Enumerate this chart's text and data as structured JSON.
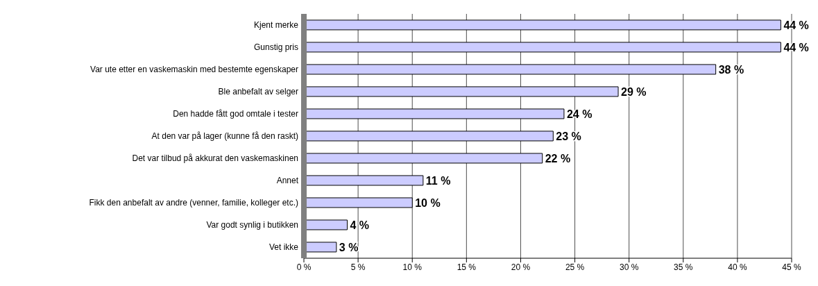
{
  "chart_data": {
    "type": "bar",
    "orientation": "horizontal",
    "categories": [
      "Kjent merke",
      "Gunstig pris",
      "Var ute etter en vaskemaskin med bestemte egenskaper",
      "Ble anbefalt av selger",
      "Den hadde fått god omtale i tester",
      "At den var på lager (kunne få den raskt)",
      "Det var tilbud på akkurat den vaskemaskinen",
      "Annet",
      "Fikk den anbefalt av andre (venner, familie, kolleger etc.)",
      "Var godt synlig i butikken",
      "Vet ikke"
    ],
    "values": [
      44,
      44,
      38,
      29,
      24,
      23,
      22,
      11,
      10,
      4,
      3
    ],
    "value_labels": [
      "44 %",
      "44 %",
      "38 %",
      "29 %",
      "24 %",
      "23 %",
      "22 %",
      "11 %",
      "10 %",
      "4 %",
      "3 %"
    ],
    "color": "#ccccff",
    "xlim": [
      0,
      45
    ],
    "xticks": [
      {
        "value": 0,
        "label": "0 %"
      },
      {
        "value": 5,
        "label": "5 %"
      },
      {
        "value": 10,
        "label": "10 %"
      },
      {
        "value": 15,
        "label": "15 %"
      },
      {
        "value": 20,
        "label": "20 %"
      },
      {
        "value": 25,
        "label": "25 %"
      },
      {
        "value": 30,
        "label": "30 %"
      },
      {
        "value": 35,
        "label": "35 %"
      },
      {
        "value": 40,
        "label": "40 %"
      },
      {
        "value": 45,
        "label": "45 %"
      }
    ],
    "grid": "x",
    "legend": false
  }
}
